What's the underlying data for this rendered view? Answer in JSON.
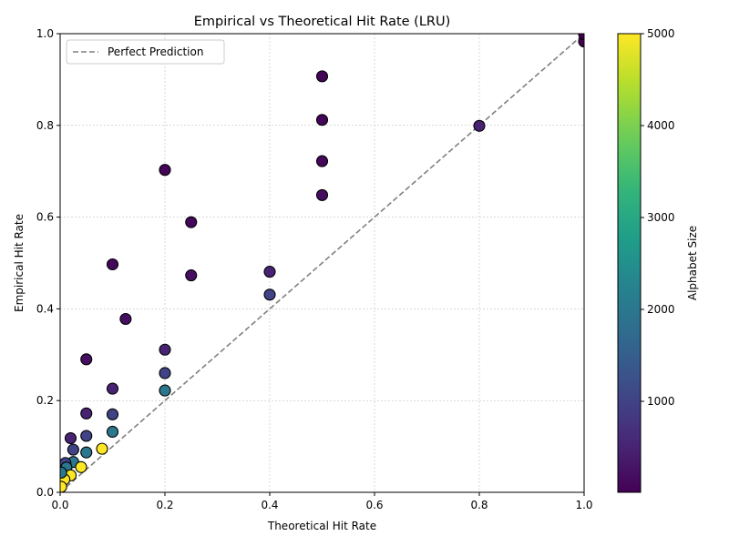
{
  "chart_data": {
    "type": "scatter",
    "title": "Empirical vs Theoretical Hit Rate (LRU)",
    "xlabel": "Theoretical Hit Rate",
    "ylabel": "Empirical Hit Rate",
    "xlim": [
      0,
      1
    ],
    "ylim": [
      0,
      1
    ],
    "grid": true,
    "x_ticks": [
      "0.0",
      "0.2",
      "0.4",
      "0.6",
      "0.8",
      "1.0"
    ],
    "y_ticks": [
      "0.0",
      "0.2",
      "0.4",
      "0.6",
      "0.8",
      "1.0"
    ],
    "legend": {
      "placement": "top-left",
      "entries": [
        "Perfect Prediction"
      ]
    },
    "reference_line": {
      "name": "Perfect Prediction",
      "x": [
        0,
        1
      ],
      "y": [
        0,
        1
      ],
      "color": "#808080",
      "style": "dashed"
    },
    "colorbar": {
      "label": "Alphabet Size",
      "min": 10,
      "max": 5000,
      "colormap": "viridis",
      "ticks": [
        1000,
        2000,
        3000,
        4000,
        5000
      ],
      "tick_labels": [
        "1000",
        "2000",
        "3000",
        "4000",
        "5000"
      ]
    },
    "points": [
      {
        "x": 0.5,
        "y": 0.907,
        "alphabet": 50
      },
      {
        "x": 0.5,
        "y": 0.812,
        "alphabet": 50
      },
      {
        "x": 0.5,
        "y": 0.722,
        "alphabet": 100
      },
      {
        "x": 0.5,
        "y": 0.648,
        "alphabet": 200
      },
      {
        "x": 0.2,
        "y": 0.703,
        "alphabet": 50
      },
      {
        "x": 0.25,
        "y": 0.589,
        "alphabet": 100
      },
      {
        "x": 0.25,
        "y": 0.473,
        "alphabet": 200
      },
      {
        "x": 0.1,
        "y": 0.497,
        "alphabet": 100
      },
      {
        "x": 0.125,
        "y": 0.378,
        "alphabet": 200
      },
      {
        "x": 0.05,
        "y": 0.29,
        "alphabet": 200
      },
      {
        "x": 0.4,
        "y": 0.481,
        "alphabet": 500
      },
      {
        "x": 0.4,
        "y": 0.431,
        "alphabet": 1000
      },
      {
        "x": 0.2,
        "y": 0.311,
        "alphabet": 500
      },
      {
        "x": 0.2,
        "y": 0.26,
        "alphabet": 1000
      },
      {
        "x": 0.2,
        "y": 0.222,
        "alphabet": 2000
      },
      {
        "x": 0.1,
        "y": 0.226,
        "alphabet": 500
      },
      {
        "x": 0.1,
        "y": 0.17,
        "alphabet": 1000
      },
      {
        "x": 0.1,
        "y": 0.132,
        "alphabet": 2000
      },
      {
        "x": 0.05,
        "y": 0.172,
        "alphabet": 500
      },
      {
        "x": 0.05,
        "y": 0.123,
        "alphabet": 1000
      },
      {
        "x": 0.05,
        "y": 0.087,
        "alphabet": 2000
      },
      {
        "x": 0.08,
        "y": 0.095,
        "alphabet": 5000
      },
      {
        "x": 0.02,
        "y": 0.118,
        "alphabet": 500
      },
      {
        "x": 0.025,
        "y": 0.093,
        "alphabet": 1000
      },
      {
        "x": 0.025,
        "y": 0.066,
        "alphabet": 2000
      },
      {
        "x": 0.04,
        "y": 0.055,
        "alphabet": 5000
      },
      {
        "x": 0.01,
        "y": 0.064,
        "alphabet": 1000
      },
      {
        "x": 0.012,
        "y": 0.054,
        "alphabet": 2000
      },
      {
        "x": 0.02,
        "y": 0.037,
        "alphabet": 5000
      },
      {
        "x": 0.008,
        "y": 0.028,
        "alphabet": 5000
      },
      {
        "x": 0.002,
        "y": 0.043,
        "alphabet": 2000
      },
      {
        "x": 0.002,
        "y": 0.012,
        "alphabet": 5000
      },
      {
        "x": 0.8,
        "y": 0.799,
        "alphabet": 500
      },
      {
        "x": 1.0,
        "y": 0.983,
        "alphabet": 10
      },
      {
        "x": 1.0,
        "y": 0.999,
        "alphabet": 10
      }
    ]
  }
}
